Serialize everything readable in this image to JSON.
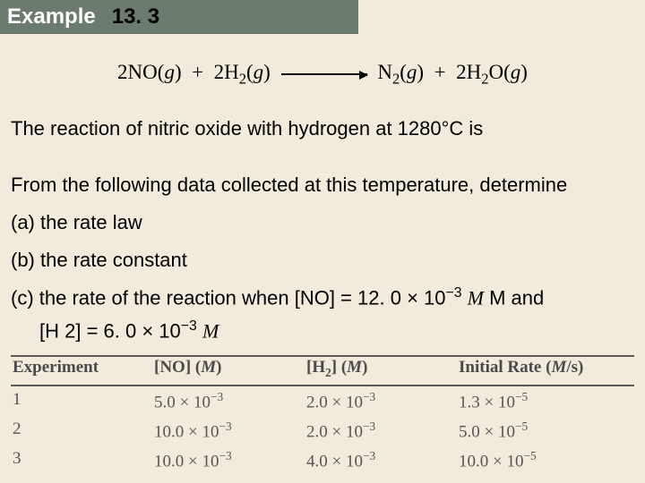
{
  "header": {
    "label": "Example",
    "number": "13. 3"
  },
  "equation": {
    "lhs1_coef": "2",
    "lhs1": "NO",
    "g": "g",
    "lhs2_coef": "2",
    "lhs2": "H",
    "lhs2_sub": "2",
    "rhs1": "N",
    "rhs1_sub": "2",
    "rhs2_coef": "2",
    "rhs2": "H",
    "rhs2_sub": "2",
    "rhs2b": "O"
  },
  "text": {
    "line1": "The reaction of nitric oxide with hydrogen at 1280°C is",
    "line2": "From the following data collected at this temperature, determine",
    "qa": "(a) the rate law",
    "qb": "(b) the rate constant",
    "qc_pre": "(c) the rate of the reaction when [NO] = 12. 0 × 10",
    "qc_exp": "−3",
    "qc_post": " M and",
    "qc2_pre": "[H 2] = 6. 0 × 10",
    "qc2_exp": "−3",
    "qc2_post": " M"
  },
  "table": {
    "headers": {
      "c1": "Experiment",
      "c2a": "[NO] (",
      "c2b": "M",
      "c2c": ")",
      "c3a": "[H",
      "c3sub": "2",
      "c3b": "] (",
      "c3c": "M",
      "c3d": ")",
      "c4a": "Initial Rate (",
      "c4b": "M",
      "c4c": "/s)"
    },
    "rows": [
      {
        "exp": "1",
        "no_m": "5.0",
        "no_e": "−3",
        "h2_m": "2.0",
        "h2_e": "−3",
        "r_m": "1.3",
        "r_e": "−5"
      },
      {
        "exp": "2",
        "no_m": "10.0",
        "no_e": "−3",
        "h2_m": "2.0",
        "h2_e": "−3",
        "r_m": "5.0",
        "r_e": "−5"
      },
      {
        "exp": "3",
        "no_m": "10.0",
        "no_e": "−3",
        "h2_m": "4.0",
        "h2_e": "−3",
        "r_m": "10.0",
        "r_e": "−5"
      }
    ]
  }
}
